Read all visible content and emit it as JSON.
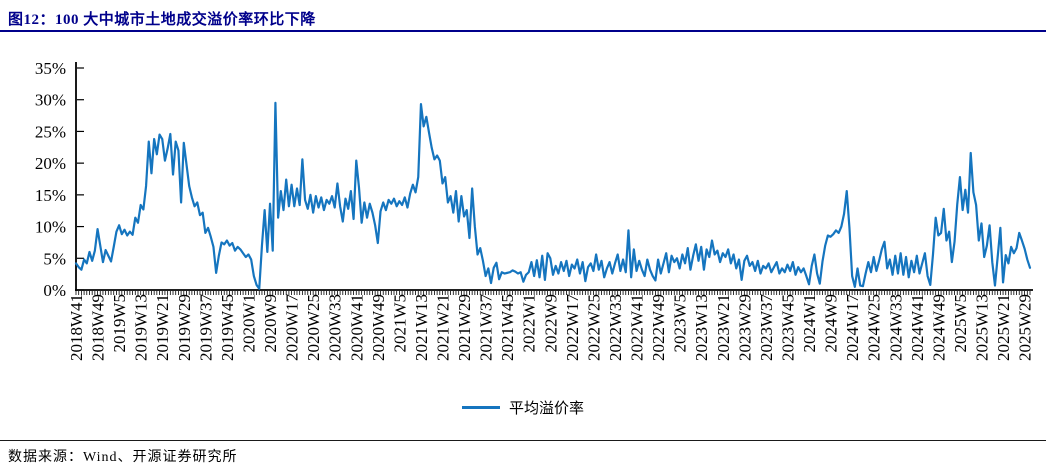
{
  "header": {
    "title": "图12：100 大中城市土地成交溢价率环比下降"
  },
  "legend": {
    "series_label": "平均溢价率"
  },
  "footer": {
    "source": "数据来源：Wind、开源证券研究所"
  },
  "colors": {
    "title_navy": "#00008B",
    "series_line": "#1575BF",
    "axis": "#000000",
    "background": "#FFFFFF"
  },
  "chart_data": {
    "type": "line",
    "title": "100 大中城市土地成交溢价率环比下降",
    "xlabel": "",
    "ylabel": "",
    "ylim": [
      0,
      35
    ],
    "grid": false,
    "legend_position": "bottom-center",
    "y_ticks": [
      "0%",
      "5%",
      "10%",
      "15%",
      "20%",
      "25%",
      "30%",
      "35%"
    ],
    "x_start": "2018W41",
    "x_tick_interval_weeks": 8,
    "x_tick_labels": [
      "2018W41",
      "2018W49",
      "2019W5",
      "2019W13",
      "2019W21",
      "2019W29",
      "2019W37",
      "2019W45",
      "2020W1",
      "2020W9",
      "2020W17",
      "2020W25",
      "2020W33",
      "2020W41",
      "2020W49",
      "2021W5",
      "2021W13",
      "2021W21",
      "2021W29",
      "2021W37",
      "2021W45",
      "2022W1",
      "2022W9",
      "2022W17",
      "2022W25",
      "2022W33",
      "2022W41",
      "2022W49",
      "2023W5",
      "2023W13",
      "2023W21",
      "2023W29",
      "2023W37",
      "2023W45",
      "2024W1",
      "2024W9",
      "2024W17",
      "2024W25",
      "2024W33",
      "2024W41",
      "2024W49",
      "2025W5",
      "2025W13",
      "2025W21",
      "2025W29"
    ],
    "series": [
      {
        "name": "平均溢价率",
        "unit": "%",
        "values": [
          4.2,
          3.6,
          3.2,
          4.8,
          4.2,
          6.0,
          4.6,
          6.2,
          9.6,
          7.0,
          4.4,
          6.3,
          5.4,
          4.5,
          6.8,
          9.2,
          10.2,
          8.8,
          9.5,
          8.6,
          9.2,
          8.7,
          11.4,
          10.6,
          13.4,
          12.7,
          16.4,
          23.4,
          18.4,
          23.8,
          21.4,
          24.5,
          23.8,
          20.4,
          22.3,
          24.6,
          18.2,
          23.4,
          22.0,
          13.8,
          23.2,
          19.8,
          16.4,
          14.6,
          13.2,
          13.8,
          11.8,
          12.2,
          9.0,
          9.8,
          8.4,
          6.8,
          2.7,
          5.4,
          7.5,
          7.2,
          7.8,
          7.0,
          7.4,
          6.2,
          6.8,
          6.4,
          5.8,
          5.2,
          5.6,
          4.8,
          2.2,
          0.8,
          0.2,
          7.0,
          12.6,
          6.0,
          13.6,
          6.2,
          29.5,
          11.4,
          15.6,
          12.6,
          17.4,
          13.2,
          16.6,
          13.2,
          16.0,
          13.4,
          20.6,
          14.2,
          12.8,
          15.0,
          12.2,
          14.8,
          13.0,
          14.6,
          12.6,
          14.2,
          13.6,
          14.8,
          13.0,
          16.8,
          13.2,
          10.8,
          14.4,
          12.8,
          15.6,
          11.2,
          20.4,
          16.2,
          10.6,
          13.8,
          11.4,
          13.6,
          12.2,
          10.2,
          7.4,
          12.4,
          13.8,
          12.6,
          14.2,
          13.6,
          14.4,
          13.2,
          14.0,
          13.4,
          14.6,
          13.0,
          15.2,
          16.6,
          15.4,
          17.8,
          29.3,
          25.8,
          27.3,
          24.8,
          22.4,
          20.6,
          21.2,
          20.4,
          16.8,
          17.8,
          13.8,
          14.8,
          12.2,
          15.6,
          10.8,
          14.8,
          11.6,
          12.6,
          8.2,
          16.0,
          10.0,
          5.6,
          6.6,
          4.6,
          2.2,
          3.4,
          1.1,
          3.5,
          4.3,
          1.7,
          2.8,
          2.6,
          2.7,
          2.8,
          3.1,
          2.9,
          2.6,
          2.8,
          1.3,
          2.4,
          2.8,
          4.4,
          2.2,
          4.7,
          2.0,
          5.4,
          1.6,
          5.8,
          5.0,
          2.4,
          3.8,
          2.6,
          4.4,
          3.0,
          4.6,
          2.2,
          4.0,
          3.4,
          4.8,
          2.6,
          4.4,
          1.4,
          3.6,
          4.2,
          3.0,
          5.6,
          3.2,
          4.6,
          2.0,
          3.4,
          4.4,
          2.6,
          4.2,
          5.6,
          3.0,
          4.8,
          2.8,
          9.4,
          2.0,
          6.4,
          3.0,
          4.6,
          3.2,
          2.2,
          4.8,
          3.2,
          2.2,
          1.5,
          4.8,
          2.6,
          4.2,
          5.8,
          2.8,
          5.4,
          4.4,
          5.0,
          3.4,
          5.6,
          4.2,
          6.6,
          3.2,
          5.4,
          7.2,
          4.6,
          6.8,
          3.2,
          6.4,
          5.2,
          7.8,
          5.6,
          6.2,
          4.4,
          5.8,
          5.2,
          6.4,
          4.2,
          5.6,
          3.4,
          4.8,
          1.6,
          4.6,
          5.4,
          3.8,
          4.4,
          3.0,
          4.6,
          2.6,
          3.8,
          3.4,
          4.2,
          2.8,
          3.6,
          4.4,
          2.6,
          3.4,
          2.8,
          4.0,
          3.0,
          4.4,
          2.4,
          3.6,
          2.8,
          3.4,
          2.2,
          0.9,
          3.8,
          5.6,
          2.6,
          1.0,
          4.5,
          7.0,
          8.6,
          8.4,
          8.8,
          9.4,
          9.0,
          10.0,
          12.0,
          15.6,
          9.8,
          2.2,
          0.5,
          3.4,
          0.7,
          0.6,
          2.6,
          4.4,
          2.8,
          5.2,
          3.0,
          4.6,
          6.4,
          7.6,
          3.4,
          4.8,
          2.4,
          5.4,
          2.6,
          5.8,
          2.4,
          5.2,
          2.0,
          4.6,
          2.8,
          5.4,
          2.6,
          4.2,
          5.8,
          2.2,
          0.8,
          5.6,
          11.4,
          8.6,
          9.0,
          12.8,
          7.8,
          9.2,
          4.4,
          7.6,
          13.5,
          17.8,
          12.6,
          15.8,
          12.2,
          21.6,
          15.4,
          13.4,
          7.8,
          10.5,
          5.2,
          7.0,
          10.2,
          4.4,
          0.7,
          5.2,
          9.8,
          1.2,
          5.5,
          4.2,
          6.8,
          5.8,
          6.6,
          9.0,
          7.8,
          6.5,
          4.8,
          3.5
        ]
      }
    ]
  }
}
